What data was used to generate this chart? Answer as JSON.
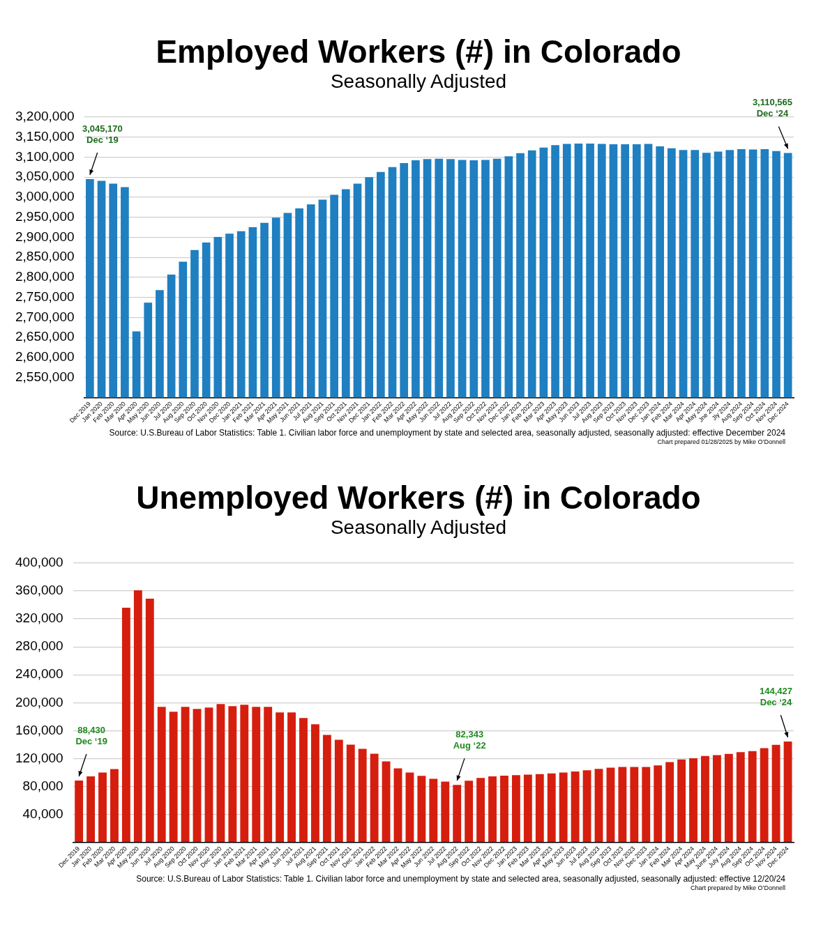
{
  "chart_data": [
    {
      "type": "bar",
      "title": "Employed Workers (#) in Colorado",
      "subtitle": "Seasonally Adjusted",
      "categories": [
        "Dec 2019",
        "Jan 2020",
        "Feb 2020",
        "Mar 2020",
        "Apr 2020",
        "May 2020",
        "Jun 2020",
        "Jul 2020",
        "Aug 2020",
        "Sep 2020",
        "Oct 2020",
        "Nov 2020",
        "Dec 2020",
        "Jan 2021",
        "Feb 2021",
        "Mar 2021",
        "Apr 2021",
        "May 2021",
        "Jun 2021",
        "Jul 2021",
        "Aug 2021",
        "Sep 2021",
        "Oct 2021",
        "Nov 2021",
        "Dec 2021",
        "Jan 2022",
        "Feb 2022",
        "Mar 2022",
        "Apr 2022",
        "May 2022",
        "Jun 2022",
        "Jul 2022",
        "Aug 2022",
        "Sep 2022",
        "Oct 2022",
        "Nov 2022",
        "Dec 2022",
        "Jan 2023",
        "Feb 2023",
        "Mar 2023",
        "Apr 2023",
        "May 2023",
        "Jun 2023",
        "Jul 2023",
        "Aug 2023",
        "Sep 2023",
        "Oct 2023",
        "Nov 2023",
        "Dec 2023",
        "Jan 2024",
        "Feb 2024",
        "Mar 2024",
        "Apr 2024",
        "May 2024",
        "Jne 2024",
        "Jly 2024",
        "Aug 2024",
        "Sep 2024",
        "Oct 2024",
        "Nov 2024",
        "Dec 2024"
      ],
      "values": [
        3045170,
        3041000,
        3034000,
        3025000,
        2665000,
        2737000,
        2768000,
        2807000,
        2839000,
        2868000,
        2887000,
        2901000,
        2909000,
        2915000,
        2925000,
        2936000,
        2949000,
        2961000,
        2972000,
        2982000,
        2994000,
        3006000,
        3020000,
        3034000,
        3050000,
        3063000,
        3075000,
        3085000,
        3092000,
        3095000,
        3096000,
        3095000,
        3093000,
        3092000,
        3093000,
        3096000,
        3102000,
        3110000,
        3117000,
        3124000,
        3130000,
        3133000,
        3134000,
        3134000,
        3133000,
        3132000,
        3132000,
        3132000,
        3133000,
        3127000,
        3122000,
        3118000,
        3118000,
        3111000,
        3114000,
        3118000,
        3120000,
        3119000,
        3120000,
        3115000,
        3110565
      ],
      "color": "#1f7fc0",
      "ylim": [
        2500000,
        3200000
      ],
      "yticks": [
        {
          "value": 2500000,
          "label": null
        },
        {
          "value": 2550000,
          "label": "2,550,000"
        },
        {
          "value": 2600000,
          "label": "2,600,000"
        },
        {
          "value": 2650000,
          "label": "2,650,000"
        },
        {
          "value": 2700000,
          "label": "2,700,000"
        },
        {
          "value": 2750000,
          "label": "2,750,000"
        },
        {
          "value": 2800000,
          "label": "2,800,000"
        },
        {
          "value": 2850000,
          "label": "2,850,000"
        },
        {
          "value": 2900000,
          "label": "2,900,000"
        },
        {
          "value": 2950000,
          "label": "2,950,000"
        },
        {
          "value": 3000000,
          "label": "3,000,000"
        },
        {
          "value": 3050000,
          "label": "3,050,000"
        },
        {
          "value": 3100000,
          "label": "3,100,000"
        },
        {
          "value": 3150000,
          "label": "3,150,000"
        },
        {
          "value": 3200000,
          "label": "3,200,000"
        }
      ],
      "grid": "y",
      "annotations": [
        {
          "text": "3,045,170\nDec ‘19",
          "x": "Dec 2019",
          "y": 3045170
        },
        {
          "text": "3,110,565\nDec ‘24",
          "x": "Dec 2024",
          "y": 3110565
        },
        "Source: U.S.Bureau of Labor Statistics: Table 1. Civilian labor force and unemployment by state and selected area, seasonally adjusted, seasonally adjusted: effective December 2024",
        "Chart prepared 01/28/2025  by Mike O’Donnell"
      ]
    },
    {
      "type": "bar",
      "title": "Unemployed Workers (#) in Colorado",
      "subtitle": "Seasonally Adjusted",
      "categories": [
        "Dec 2019",
        "Jan 2020",
        "Feb 2020",
        "Mar 2020",
        "Apr 2020",
        "May 2020",
        "Jun 2020",
        "Jul 2020",
        "Aug 2020",
        "Sep 2020",
        "Oct 2020",
        "Nov 2020",
        "Dec 2020",
        "Jan 2021",
        "Feb 2021",
        "Mar 2021",
        "Apr 2021",
        "May 2021",
        "Jun 2021",
        "Jul 2021",
        "Aug 2021",
        "Sep 2021",
        "Oct 2021",
        "Nov 2021",
        "Dec 2021",
        "Jan 2022",
        "Feb 2022",
        "Mar 2022",
        "Apr 2022",
        "May 2022",
        "Jun 2022",
        "Jul 2022",
        "Aug 2022",
        "Sep 2022",
        "Oct 2022",
        "Nov 2022",
        "Dec 2022",
        "Jan 2023",
        "Feb 2023",
        "Mar 2023",
        "Apr 2023",
        "May 2023",
        "Jun 2023",
        "Jul 2023",
        "Aug 2023",
        "Sep 2023",
        "Oct 2023",
        "Nov 2023",
        "Dec 2023",
        "Jan 2024",
        "Feb 2024",
        "Mar 2024",
        "Apr 2024",
        "May 2024",
        "June 2024",
        "July 2024",
        "Aug 2024",
        "Sep 2024",
        "Oct 2024",
        "Nov 2024",
        "Dec 2024"
      ],
      "values": [
        88430,
        94400,
        99900,
        105000,
        336000,
        361000,
        349000,
        194000,
        187000,
        194000,
        191000,
        193000,
        198000,
        195000,
        197000,
        194000,
        194000,
        186000,
        186000,
        178000,
        169000,
        154000,
        147000,
        140000,
        134000,
        127000,
        116000,
        106000,
        100000,
        95200,
        91100,
        87100,
        82343,
        88200,
        92200,
        94400,
        95500,
        96300,
        97000,
        97700,
        98800,
        99900,
        101400,
        103200,
        105100,
        106900,
        108000,
        108000,
        108000,
        110200,
        115000,
        118700,
        120500,
        123800,
        124900,
        126700,
        129300,
        130800,
        134800,
        139600,
        144427
      ],
      "color": "#d61e0e",
      "ylim": [
        0,
        400000
      ],
      "yticks": [
        {
          "value": 0,
          "label": null
        },
        {
          "value": 40000,
          "label": "40,000"
        },
        {
          "value": 80000,
          "label": "80,000"
        },
        {
          "value": 120000,
          "label": "120,000"
        },
        {
          "value": 160000,
          "label": "160,000"
        },
        {
          "value": 200000,
          "label": "200,000"
        },
        {
          "value": 240000,
          "label": "240,000"
        },
        {
          "value": 280000,
          "label": "280,000"
        },
        {
          "value": 320000,
          "label": "320,000"
        },
        {
          "value": 360000,
          "label": "360,000"
        },
        {
          "value": 400000,
          "label": "400,000"
        }
      ],
      "grid": "y",
      "annotations": [
        {
          "text": "88,430\nDec ‘19",
          "x": "Dec 2019",
          "y": 88430
        },
        {
          "text": "82,343\nAug ‘22",
          "x": "Aug 2022",
          "y": 82343
        },
        {
          "text": "144,427\nDec ‘24",
          "x": "Dec 2024",
          "y": 144427
        },
        "Source: U.S.Bureau of Labor Statistics: Table 1. Civilian labor force and unemployment by state and selected area, seasonally adjusted, seasonally adjusted: effective 12/20/24",
        "Chart prepared by Mike O’Donnell"
      ]
    }
  ]
}
